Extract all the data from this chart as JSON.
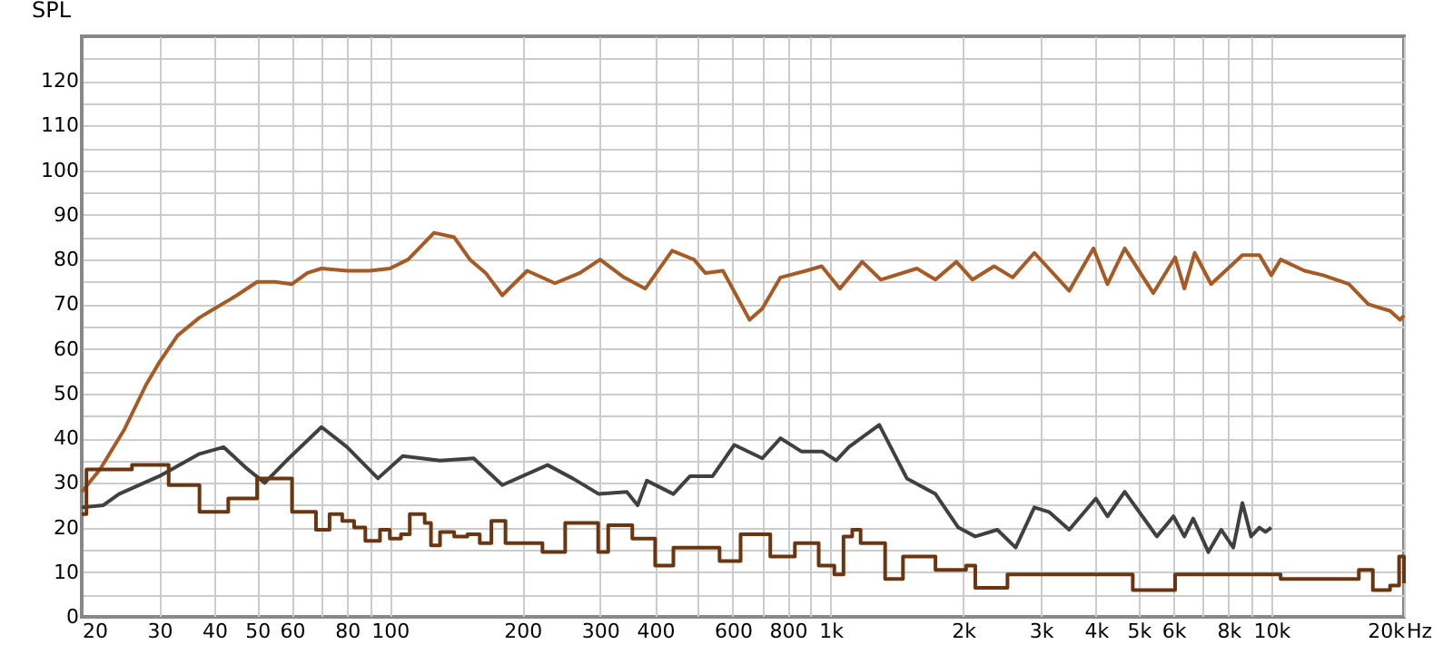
{
  "chart_data": {
    "type": "line",
    "xlabel": "Hz",
    "ylabel": "SPL",
    "log": "x",
    "grid": true,
    "marker": "none",
    "line_style": "solid",
    "xlim": [
      20,
      20000
    ],
    "ylim": [
      0,
      130
    ],
    "xticks": [
      20,
      30,
      40,
      50,
      60,
      {
        "value": 70,
        "label": null
      },
      80,
      {
        "value": 90,
        "label": null
      },
      100,
      200,
      300,
      400,
      {
        "value": 500,
        "label": null
      },
      600,
      {
        "value": 700,
        "label": null
      },
      800,
      {
        "value": 900,
        "label": null
      },
      {
        "value": 1000,
        "label": "1k"
      },
      {
        "value": 2000,
        "label": "2k"
      },
      {
        "value": 3000,
        "label": "3k"
      },
      {
        "value": 4000,
        "label": "4k"
      },
      {
        "value": 5000,
        "label": "5k"
      },
      {
        "value": 6000,
        "label": "6k"
      },
      {
        "value": 7000,
        "label": null
      },
      {
        "value": 8000,
        "label": "8k"
      },
      {
        "value": 9000,
        "label": null
      },
      {
        "value": 10000,
        "label": "10k"
      },
      {
        "value": 20000,
        "label": "20k"
      }
    ],
    "yticks": [
      0,
      {
        "value": 5,
        "label": null
      },
      10,
      {
        "value": 15,
        "label": null
      },
      20,
      {
        "value": 25,
        "label": null
      },
      30,
      {
        "value": 35,
        "label": null
      },
      40,
      {
        "value": 45,
        "label": null
      },
      50,
      {
        "value": 55,
        "label": null
      },
      60,
      {
        "value": 65,
        "label": null
      },
      70,
      {
        "value": 75,
        "label": null
      },
      80,
      {
        "value": 85,
        "label": null
      },
      90,
      {
        "value": 95,
        "label": null
      },
      100,
      {
        "value": 105,
        "label": null
      },
      110,
      {
        "value": 115,
        "label": null
      },
      120,
      {
        "value": 125,
        "label": null
      }
    ],
    "series": [
      {
        "color": "#a85a25",
        "x": [
          20,
          22,
          25,
          28,
          30,
          33,
          37,
          40,
          45,
          50,
          55,
          60,
          65,
          70,
          80,
          90,
          100,
          110,
          126,
          140,
          152,
          165,
          180,
          205,
          237,
          270,
          300,
          340,
          380,
          437,
          490,
          520,
          570,
          655,
          700,
          770,
          880,
          955,
          1050,
          1180,
          1300,
          1570,
          1730,
          1930,
          2100,
          2350,
          2590,
          2900,
          3480,
          3950,
          4250,
          4650,
          5400,
          6050,
          6350,
          6700,
          7300,
          8600,
          9400,
          10000,
          10500,
          11900,
          13100,
          15000,
          16600,
          18600,
          19600,
          20000
        ],
        "values": [
          28,
          33,
          42,
          52,
          57,
          63,
          67,
          69,
          72,
          75,
          75,
          74.5,
          77,
          78,
          77.5,
          77.5,
          78,
          80,
          86,
          85,
          80,
          77,
          72,
          77.5,
          74.7,
          77,
          80,
          76,
          73.5,
          82,
          80,
          77,
          77.5,
          66.5,
          69,
          76,
          77.5,
          78.5,
          73.5,
          79.5,
          75.5,
          78,
          75.5,
          79.5,
          75.5,
          78.5,
          76,
          81.5,
          73,
          82.5,
          74.5,
          82.5,
          72.5,
          80.5,
          73.5,
          81.5,
          74.5,
          81,
          81,
          76.5,
          80,
          77.5,
          76.5,
          74.5,
          70,
          68.5,
          66.5,
          67.5
        ]
      },
      {
        "color": "#404040",
        "x": [
          20,
          22.4,
          24.3,
          30,
          37,
          42,
          47,
          52,
          59,
          70,
          80,
          94,
          107,
          130,
          155,
          180,
          228,
          260,
          298,
          345,
          365,
          383,
          440,
          480,
          540,
          605,
          700,
          770,
          860,
          960,
          1030,
          1100,
          1290,
          1490,
          1730,
          1950,
          2130,
          2390,
          2630,
          2900,
          3130,
          3480,
          4000,
          4250,
          4650,
          5500,
          6000,
          6350,
          6650,
          7200,
          7700,
          8200,
          8600,
          9000,
          9400,
          9700,
          10000
        ],
        "values": [
          24.5,
          25,
          27.5,
          31.5,
          36.5,
          38,
          33.5,
          30,
          35.5,
          42.5,
          38,
          31,
          36,
          35,
          35.5,
          29.5,
          34,
          31,
          27.5,
          28,
          25,
          30.5,
          27.5,
          31.5,
          31.5,
          38.5,
          35.5,
          40,
          37,
          37,
          35,
          38,
          43,
          31,
          27.5,
          20,
          18,
          19.5,
          15.5,
          24.5,
          23.5,
          19.5,
          26.5,
          22.5,
          28,
          18,
          22.5,
          18,
          22,
          14.5,
          19.5,
          15.5,
          25.5,
          18,
          20,
          19,
          20
        ]
      },
      {
        "type": "step",
        "color": "#6b3510",
        "x": [
          20,
          20.5,
          26,
          31.5,
          37,
          43,
          50,
          60,
          68,
          73,
          78,
          83,
          88,
          95,
          100,
          106,
          111,
          120,
          124,
          130,
          140,
          150,
          160,
          170,
          183,
          222,
          250,
          297,
          313,
          355,
          400,
          440,
          495,
          560,
          625,
          685,
          730,
          830,
          940,
          1020,
          1070,
          1120,
          1170,
          1330,
          1460,
          1730,
          2030,
          2130,
          2520,
          3130,
          4000,
          4850,
          6050,
          7500,
          9000,
          10500,
          12400,
          15800,
          17000,
          18600,
          19500,
          20000
        ],
        "values": [
          23,
          33,
          34,
          29.5,
          23.5,
          26.5,
          31,
          23.5,
          19.5,
          23,
          21.5,
          20,
          17,
          19.5,
          17.5,
          18.5,
          23,
          21,
          16,
          19,
          18,
          18.5,
          16.5,
          21.5,
          16.5,
          14.5,
          21,
          14.5,
          20.5,
          17.5,
          11.5,
          15.5,
          15.5,
          12.5,
          18.5,
          18.5,
          13.5,
          16.5,
          11.5,
          9.5,
          18,
          19.5,
          16.5,
          8.5,
          13.5,
          10.5,
          11.5,
          6.5,
          9.5,
          9.5,
          9.5,
          6,
          9.5,
          9.5,
          9.5,
          8.5,
          8.5,
          10.5,
          6,
          7,
          13.5,
          7.5
        ]
      }
    ]
  }
}
